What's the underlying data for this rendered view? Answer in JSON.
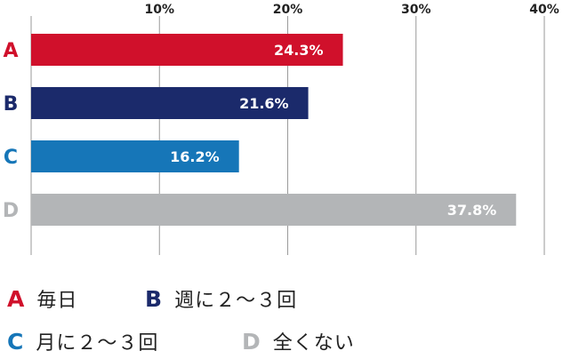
{
  "chart_data": {
    "type": "bar",
    "orientation": "horizontal",
    "categories": [
      "A",
      "B",
      "C",
      "D"
    ],
    "values": [
      24.3,
      21.6,
      16.2,
      37.8
    ],
    "value_labels": [
      "24.3%",
      "21.6%",
      "16.2%",
      "37.8%"
    ],
    "category_colors": [
      "#d0102b",
      "#1b2a6b",
      "#1676b8",
      "#b3b5b7"
    ],
    "xlim": [
      0,
      40
    ],
    "xticks": [
      10,
      20,
      30,
      40
    ],
    "xtick_labels": [
      "10%",
      "20%",
      "30%",
      "40%"
    ],
    "grid": true,
    "legend_position": "bottom"
  },
  "legend": {
    "items": [
      {
        "letter": "A",
        "label": "毎日",
        "color": "#d0102b"
      },
      {
        "letter": "B",
        "label": "週に２〜３回",
        "color": "#1b2a6b"
      },
      {
        "letter": "C",
        "label": "月に２〜３回",
        "color": "#1676b8"
      },
      {
        "letter": "D",
        "label": "全くない",
        "color": "#b3b5b7"
      }
    ]
  }
}
